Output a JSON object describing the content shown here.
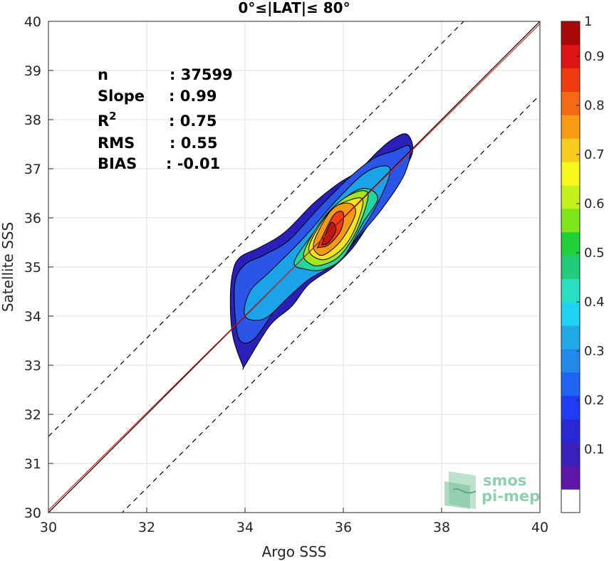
{
  "chart_data": {
    "type": "heatmap",
    "subtype": "density-contour",
    "title": "0°≤|LAT|≤ 80°",
    "xlabel": "Argo SSS",
    "ylabel": "Satellite SSS",
    "xlim": [
      30,
      40
    ],
    "ylim": [
      30,
      40
    ],
    "xticks": [
      "30",
      "32",
      "34",
      "36",
      "38",
      "40"
    ],
    "yticks": [
      "30",
      "31",
      "32",
      "33",
      "34",
      "35",
      "36",
      "37",
      "38",
      "39",
      "40"
    ],
    "grid": true,
    "stats": [
      {
        "label": "n",
        "value": ": 37599"
      },
      {
        "label": "Slope",
        "value": ": 0.99"
      },
      {
        "label": "R2",
        "value": ": 0.75"
      },
      {
        "label": "RMS",
        "value": ": 0.55"
      },
      {
        "label": "BIAS",
        "value": ": -0.01"
      }
    ],
    "reference_lines": {
      "identity": {
        "slope": 1,
        "intercept": 0,
        "color": "#000000",
        "style": "solid"
      },
      "regression": {
        "slope": 0.99,
        "intercept": 0.35,
        "color": "#e02020",
        "style": "solid"
      },
      "offset_bounds": {
        "offsets": [
          1.55,
          -1.5
        ],
        "color": "#000000",
        "style": "dashed"
      }
    },
    "contours": [
      {
        "level": 0.05,
        "color": "#2a1fb8",
        "x": [
          33.95,
          33.75,
          33.7,
          33.75,
          33.9,
          34.3,
          34.8,
          35.4,
          35.9,
          36.3,
          36.7,
          37.0,
          37.3,
          37.4,
          37.0,
          36.6,
          36.2,
          35.8,
          35.3,
          34.95,
          34.5,
          34.0
        ],
        "y": [
          33.0,
          33.6,
          34.3,
          34.9,
          35.2,
          35.4,
          35.7,
          36.3,
          36.7,
          36.95,
          37.35,
          37.6,
          37.7,
          37.3,
          36.6,
          36.0,
          35.4,
          35.0,
          34.65,
          34.2,
          33.8,
          33.0
        ]
      },
      {
        "level": 0.15,
        "color": "#2a55e6",
        "x": [
          33.9,
          33.8,
          33.8,
          34.0,
          34.4,
          34.9,
          35.5,
          36.1,
          36.6,
          37.0,
          37.35,
          37.25,
          36.8,
          36.3,
          35.9,
          35.4,
          35.0,
          34.7,
          34.2
        ],
        "y": [
          33.5,
          34.0,
          34.7,
          35.05,
          35.25,
          35.55,
          36.2,
          36.8,
          37.2,
          37.35,
          37.45,
          36.9,
          36.2,
          35.6,
          35.15,
          34.85,
          34.55,
          34.25,
          33.55
        ]
      },
      {
        "level": 0.3,
        "color": "#1aa3e8",
        "x": [
          34.0,
          34.1,
          34.5,
          35.2,
          35.9,
          36.5,
          36.95,
          36.7,
          36.2,
          35.8,
          35.3,
          34.9,
          34.4
        ],
        "y": [
          34.0,
          34.5,
          34.9,
          35.6,
          36.4,
          36.95,
          37.0,
          36.3,
          35.5,
          35.05,
          34.75,
          34.4,
          33.95
        ]
      },
      {
        "level": 0.45,
        "color": "#22d6a0",
        "x": [
          35.0,
          35.4,
          35.9,
          36.4,
          36.7,
          36.4,
          36.0,
          35.6,
          35.25
        ],
        "y": [
          35.1,
          35.7,
          36.3,
          36.6,
          36.4,
          35.9,
          35.2,
          34.95,
          34.95
        ]
      },
      {
        "level": 0.55,
        "color": "#a4e61c",
        "x": [
          35.2,
          35.6,
          36.1,
          36.5,
          36.3,
          35.95,
          35.6,
          35.35
        ],
        "y": [
          35.3,
          36.0,
          36.45,
          36.5,
          35.8,
          35.25,
          35.05,
          35.05
        ]
      },
      {
        "level": 0.65,
        "color": "#f8e41c",
        "x": [
          35.3,
          35.7,
          36.1,
          36.4,
          36.2,
          35.9,
          35.55
        ],
        "y": [
          35.4,
          36.1,
          36.35,
          36.35,
          35.7,
          35.3,
          35.15
        ]
      },
      {
        "level": 0.75,
        "color": "#f39a14",
        "x": [
          35.4,
          35.75,
          36.1,
          36.25,
          36.0,
          35.7,
          35.5
        ],
        "y": [
          35.5,
          36.15,
          36.3,
          36.1,
          35.6,
          35.3,
          35.25
        ]
      },
      {
        "level": 0.85,
        "color": "#ee3c14",
        "x": [
          35.5,
          35.8,
          36.0,
          35.95,
          35.7,
          35.5
        ],
        "y": [
          35.45,
          36.05,
          36.1,
          35.75,
          35.45,
          35.4
        ]
      },
      {
        "level": 0.95,
        "color": "#c01616",
        "x": [
          35.58,
          35.75,
          35.85,
          35.7,
          35.58
        ],
        "y": [
          35.5,
          35.9,
          35.75,
          35.5,
          35.45
        ]
      }
    ],
    "colorbar": {
      "range": [
        0,
        1
      ],
      "ticks": [
        "0.1",
        "0.2",
        "0.3",
        "0.4",
        "0.5",
        "0.6",
        "0.7",
        "0.8",
        "0.9",
        "1"
      ],
      "colors": [
        "#ffffff",
        "#5d16a6",
        "#3a1fba",
        "#2a27d6",
        "#1f3cf2",
        "#1f63f2",
        "#2288ea",
        "#21a9e6",
        "#1fd2f2",
        "#2ae0c2",
        "#22cc7a",
        "#1fd23a",
        "#7fe61c",
        "#c6f01c",
        "#f8f81c",
        "#f8cc1c",
        "#f89c14",
        "#f46a14",
        "#f03a10",
        "#e01414",
        "#a80808"
      ]
    },
    "watermark": [
      "smos",
      "pi-mep"
    ]
  }
}
